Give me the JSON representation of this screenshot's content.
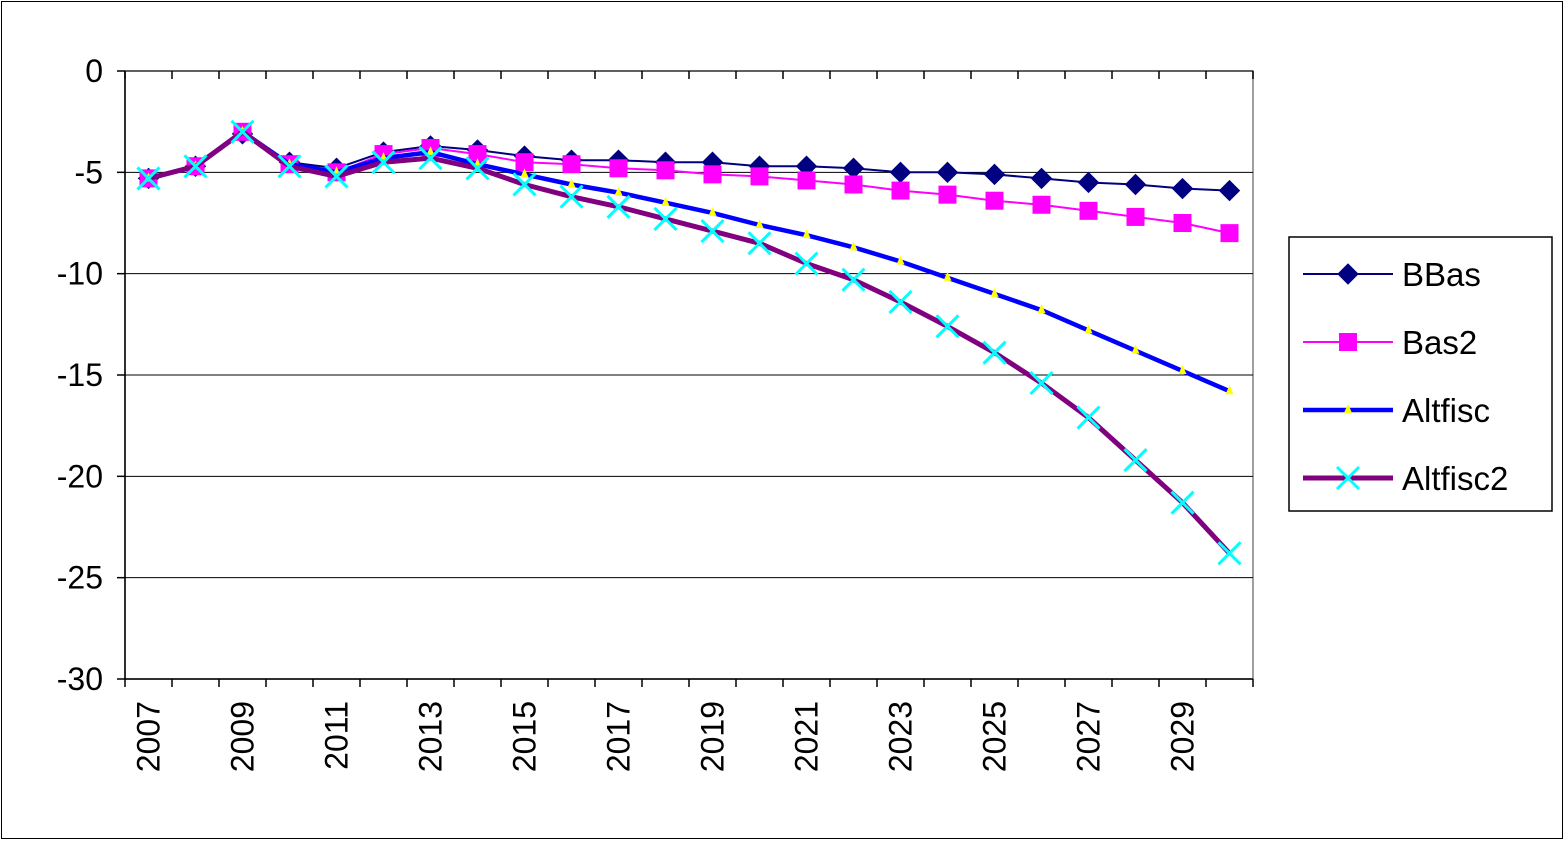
{
  "chart_data": {
    "type": "line",
    "title": "",
    "xlabel": "",
    "ylabel": "",
    "x": [
      2007,
      2008,
      2009,
      2010,
      2011,
      2012,
      2013,
      2014,
      2015,
      2016,
      2017,
      2018,
      2019,
      2020,
      2021,
      2022,
      2023,
      2024,
      2025,
      2026,
      2027,
      2028,
      2029,
      2030
    ],
    "xtick_labels": [
      "2007",
      "2009",
      "2011",
      "2013",
      "2015",
      "2017",
      "2019",
      "2021",
      "2023",
      "2025",
      "2027",
      "2029"
    ],
    "ylim": [
      -30,
      0
    ],
    "yticks": [
      0,
      -5,
      -10,
      -15,
      -20,
      -25,
      -30
    ],
    "ytick_labels": [
      "0",
      "-5",
      "-10",
      "-15",
      "-20",
      "-25",
      "-30"
    ],
    "grid": "horizontal",
    "legend_position": "right",
    "series": [
      {
        "name": "BBas",
        "color": "#000080",
        "marker": "diamond",
        "values": [
          -5.3,
          -4.7,
          -3.1,
          -4.5,
          -4.8,
          -4.0,
          -3.7,
          -3.9,
          -4.2,
          -4.4,
          -4.4,
          -4.5,
          -4.5,
          -4.7,
          -4.7,
          -4.8,
          -5.0,
          -5.0,
          -5.1,
          -5.3,
          -5.5,
          -5.6,
          -5.8,
          -5.9
        ]
      },
      {
        "name": "Bas2",
        "color": "#ff00ff",
        "marker": "square",
        "values": [
          -5.3,
          -4.7,
          -3.0,
          -4.6,
          -5.0,
          -4.1,
          -3.8,
          -4.1,
          -4.5,
          -4.6,
          -4.8,
          -4.9,
          -5.1,
          -5.2,
          -5.4,
          -5.6,
          -5.9,
          -6.1,
          -6.4,
          -6.6,
          -6.9,
          -7.2,
          -7.5,
          -8.0
        ]
      },
      {
        "name": "Altfisc",
        "color": "#0000ff",
        "marker": "triangle",
        "marker_color": "#ffff00",
        "values": [
          -5.3,
          -4.7,
          -3.0,
          -4.6,
          -5.0,
          -4.3,
          -4.0,
          -4.6,
          -5.1,
          -5.6,
          -6.0,
          -6.5,
          -7.0,
          -7.6,
          -8.1,
          -8.7,
          -9.4,
          -10.2,
          -11.0,
          -11.8,
          -12.8,
          -13.8,
          -14.8,
          -15.8
        ]
      },
      {
        "name": "Altfisc2",
        "color": "#800080",
        "marker": "x",
        "marker_color": "#00ffff",
        "values": [
          -5.3,
          -4.7,
          -3.0,
          -4.7,
          -5.2,
          -4.5,
          -4.3,
          -4.8,
          -5.6,
          -6.2,
          -6.7,
          -7.3,
          -7.9,
          -8.5,
          -9.5,
          -10.3,
          -11.4,
          -12.6,
          -13.9,
          -15.4,
          -17.1,
          -19.2,
          -21.3,
          -23.8
        ]
      }
    ]
  }
}
